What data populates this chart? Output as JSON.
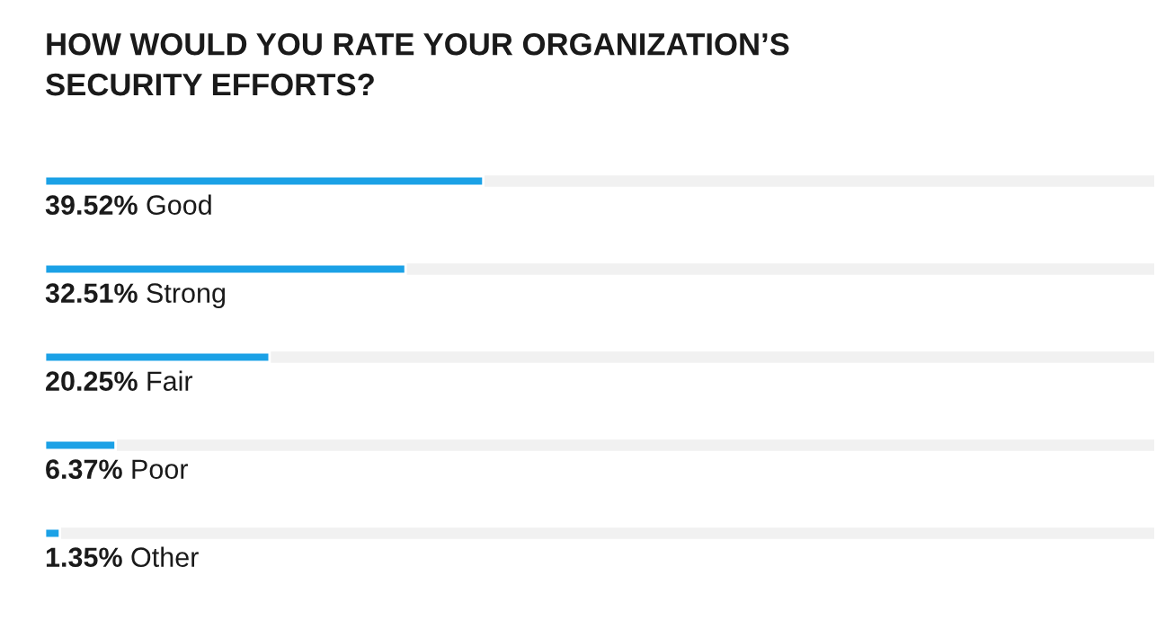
{
  "chart_data": {
    "type": "bar",
    "orientation": "horizontal",
    "title": "HOW WOULD YOU RATE YOUR ORGANIZATION’S\nSECURITY EFFORTS?",
    "categories": [
      "Good",
      "Strong",
      "Fair",
      "Poor",
      "Other"
    ],
    "values": [
      39.52,
      32.51,
      20.25,
      6.37,
      1.35
    ],
    "value_labels": [
      "39.52%",
      "32.51%",
      "20.25%",
      "6.37%",
      "1.35%"
    ],
    "color": "#1ba1e6",
    "xlim": [
      0,
      100
    ],
    "tick_labels": false
  }
}
